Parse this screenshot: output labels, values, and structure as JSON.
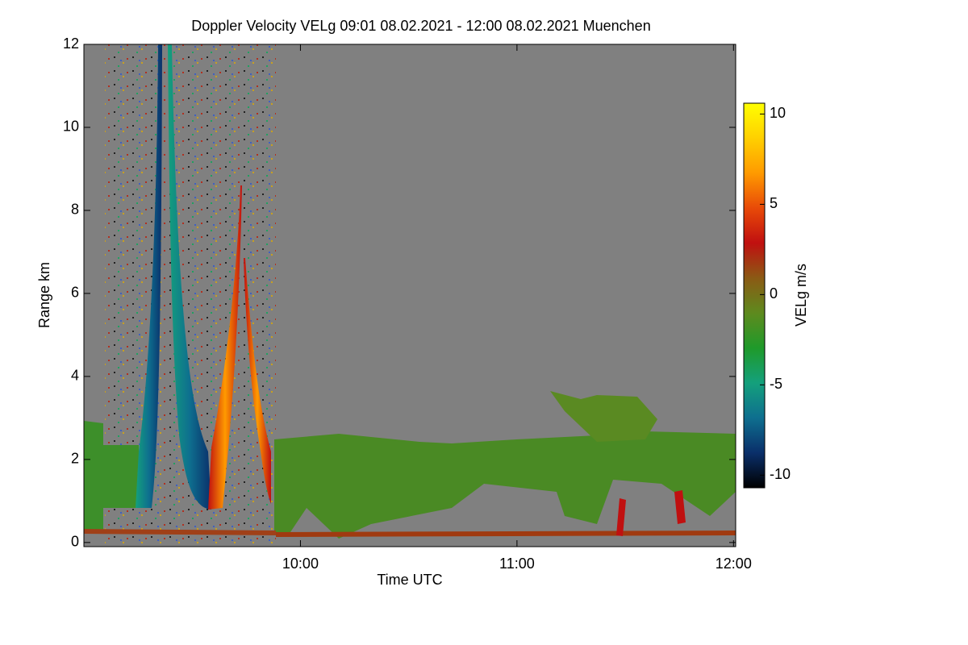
{
  "chart_data": {
    "type": "heatmap",
    "title": "Doppler Velocity VELg   09:01 08.02.2021 - 12:00 08.02.2021 Muenchen",
    "x_label": "Time UTC",
    "y_label": "Range km",
    "colorbar_label": "VELg m/s",
    "xlim": [
      9.0,
      12.01
    ],
    "xticks": [
      {
        "value": 10,
        "label": "10:00"
      },
      {
        "value": 11,
        "label": "11:00"
      },
      {
        "value": 12,
        "label": "12:00"
      }
    ],
    "ylim": [
      -0.1,
      12.0
    ],
    "yticks": [
      0,
      2,
      4,
      6,
      8,
      10,
      12
    ],
    "clim": [
      -10.7,
      10.6
    ],
    "cticks": [
      -10,
      -5,
      0,
      5,
      10
    ],
    "colormap": [
      "#000000",
      "#0a2f6a",
      "#0e6f8f",
      "#14a07c",
      "#1f9a2a",
      "#5e8a1e",
      "#8b5a14",
      "#c01010",
      "#e84a08",
      "#ff9a00",
      "#ffd000",
      "#ffff00"
    ]
  }
}
